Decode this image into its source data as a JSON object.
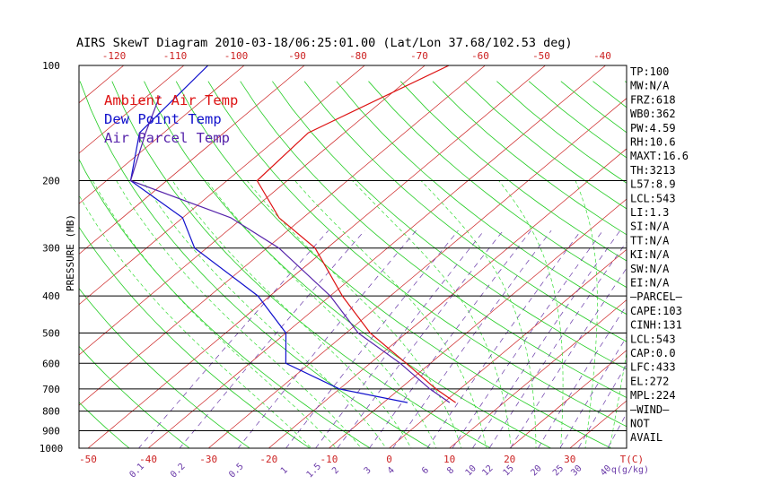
{
  "chart_data": {
    "type": "skewt",
    "title": "AIRS SkewT Diagram 2010-03-18/06:25:01.00 (Lat/Lon 37.68/102.53 deg)",
    "ylabel": "PRESSURE (MB)",
    "pressure_ticks": [
      100,
      200,
      300,
      400,
      500,
      600,
      700,
      800,
      900,
      1000
    ],
    "temp_top_ticks": [
      -120,
      -110,
      -100,
      -90,
      -80,
      -70,
      -60,
      -50,
      -40
    ],
    "temp_bottom_ticks": [
      -50,
      -40,
      -30,
      -20,
      -10,
      0,
      10,
      20,
      30
    ],
    "temp_bottom_unit": "T(C)",
    "mixing_ratio_labels": [
      "0.1",
      "0.2",
      "0.5",
      "1",
      "1.5",
      "2",
      "3",
      "4",
      "6",
      "8",
      "10",
      "12",
      "15",
      "20",
      "25",
      "30",
      "40"
    ],
    "mixing_ratio_unit": "q(g/kg)",
    "legend": [
      {
        "label": "Ambient Air Temp",
        "color": "#dd1111"
      },
      {
        "label": "Dew Point Temp",
        "color": "#1111cc"
      },
      {
        "label": "Air Parcel Temp",
        "color": "#5522aa"
      }
    ],
    "series": [
      {
        "name": "Ambient Air Temp",
        "points": [
          [
            100,
            -66
          ],
          [
            150,
            -76
          ],
          [
            200,
            -75
          ],
          [
            250,
            -64
          ],
          [
            300,
            -52
          ],
          [
            400,
            -38
          ],
          [
            500,
            -26
          ],
          [
            600,
            -14
          ],
          [
            700,
            -4
          ],
          [
            760,
            2
          ]
        ]
      },
      {
        "name": "Dew Point Temp",
        "points": [
          [
            100,
            -106
          ],
          [
            150,
            -104
          ],
          [
            200,
            -96
          ],
          [
            250,
            -80
          ],
          [
            300,
            -72
          ],
          [
            400,
            -52
          ],
          [
            500,
            -40
          ],
          [
            600,
            -34
          ],
          [
            700,
            -20
          ],
          [
            760,
            -6
          ]
        ]
      },
      {
        "name": "Air Parcel Temp",
        "points": [
          [
            120,
            -108
          ],
          [
            150,
            -103
          ],
          [
            200,
            -96
          ],
          [
            250,
            -72
          ],
          [
            300,
            -58
          ],
          [
            400,
            -40
          ],
          [
            500,
            -28
          ],
          [
            600,
            -15
          ],
          [
            700,
            -5
          ],
          [
            760,
            1
          ]
        ]
      }
    ],
    "indices": [
      "TP:100",
      "MW:N/A",
      "FRZ:618",
      "WB0:362",
      "PW:4.59",
      "RH:10.6",
      "MAXT:16.6",
      "TH:3213",
      "L57:8.9",
      "LCL:543",
      "LI:1.3",
      "SI:N/A",
      "TT:N/A",
      "KI:N/A",
      "SW:N/A",
      "EI:N/A",
      "—PARCEL—",
      "CAPE:103",
      "CINH:131",
      "LCL:543",
      "CAP:0.0",
      "LFC:433",
      "EL:272",
      "MPL:224",
      "—WIND—",
      "NOT",
      "AVAIL"
    ],
    "colors": {
      "dry_adiabat": "#22cc22",
      "moist_adiabat": "#33dd33",
      "isotherm": "#cc2222",
      "mixing_ratio": "#6a3aa8",
      "frame": "#000000"
    }
  }
}
